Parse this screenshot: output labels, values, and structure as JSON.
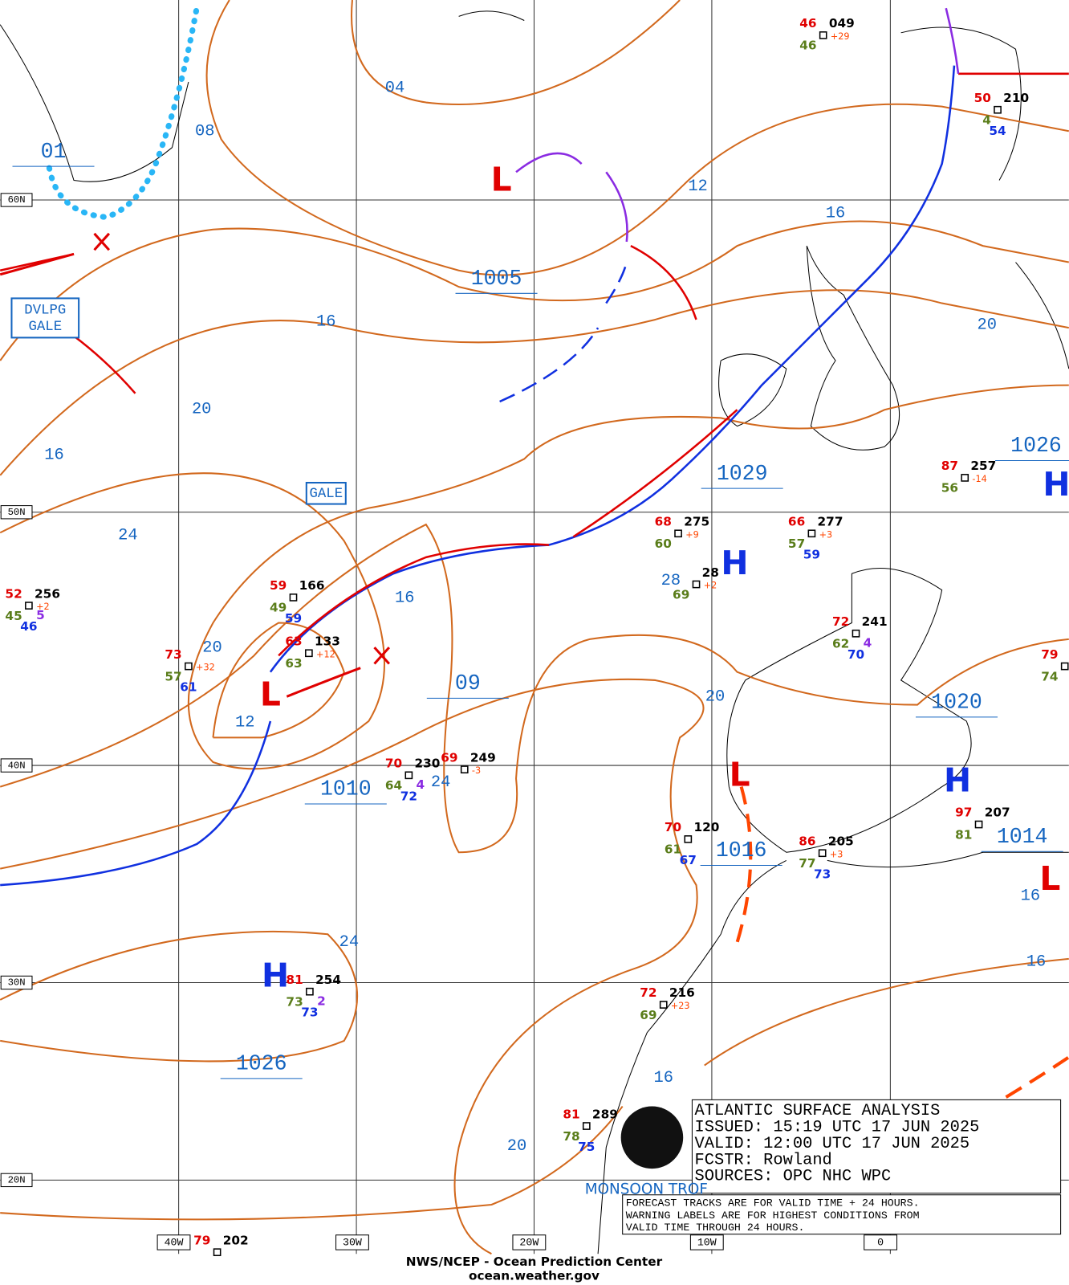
{
  "grid_labels": {
    "lat": [
      "60N",
      "50N",
      "40N",
      "30N",
      "20N"
    ],
    "lon": [
      "40W",
      "30W",
      "20W",
      "10W",
      "0"
    ]
  },
  "isobar_labels": [
    "04",
    "08",
    "01",
    "1005",
    "12",
    "16",
    "16",
    "20",
    "20",
    "16",
    "24",
    "1029",
    "1026",
    "16",
    "20",
    "12",
    "09",
    "1010",
    "24",
    "20",
    "1020",
    "1016",
    "1014",
    "16",
    "16",
    "24",
    "1026",
    "16",
    "20",
    "28"
  ],
  "centers": [
    "L",
    "L",
    "L",
    "L",
    "H",
    "H",
    "H",
    "H"
  ],
  "warnings": [
    "DVLPG GALE",
    "GALE"
  ],
  "stations": [
    {
      "temp": "46",
      "pressure": "049",
      "dew": "46",
      "tendency": "+29"
    },
    {
      "temp": "50",
      "pressure": "210",
      "dew": "4",
      "visibility": "54"
    },
    {
      "temp": "87",
      "pressure": "257",
      "dew": "56",
      "tendency": "-14"
    },
    {
      "temp": "68",
      "pressure": "275",
      "dew": "60",
      "tendency": "+9"
    },
    {
      "pressure": "28",
      "dew": "69",
      "tendency": "+2"
    },
    {
      "temp": "66",
      "pressure": "277",
      "dew": "57",
      "tendency": "+3",
      "visibility": "59"
    },
    {
      "temp": "72",
      "pressure": "241",
      "dew": "62",
      "visibility": "70",
      "extra": "4"
    },
    {
      "temp": "52",
      "pressure": "256",
      "dew": "45",
      "tendency": "+2",
      "visibility": "46",
      "extra": "5"
    },
    {
      "temp": "59",
      "pressure": "166",
      "dew": "49",
      "visibility": "59"
    },
    {
      "temp": "63",
      "pressure": "133",
      "dew": "63",
      "tendency": "+12"
    },
    {
      "temp": "73",
      "dew": "57",
      "visibility": "61",
      "tendency": "+32"
    },
    {
      "temp": "70",
      "pressure": "230",
      "dew": "64",
      "visibility": "72",
      "extra": "4"
    },
    {
      "temp": "69",
      "pressure": "249",
      "tendency": "-3"
    },
    {
      "temp": "70",
      "pressure": "120",
      "dew": "61",
      "visibility": "67"
    },
    {
      "temp": "86",
      "pressure": "205",
      "dew": "77",
      "visibility": "73",
      "tendency": "+3"
    },
    {
      "temp": "97",
      "pressure": "207",
      "dew": "81"
    },
    {
      "temp": "79",
      "dew": "74"
    },
    {
      "temp": "81",
      "pressure": "254",
      "dew": "73",
      "visibility": "73",
      "extra": "2"
    },
    {
      "temp": "72",
      "pressure": "216",
      "dew": "69",
      "tendency": "+23"
    },
    {
      "temp": "81",
      "pressure": "289",
      "dew": "78",
      "visibility": "75"
    },
    {
      "temp": "79",
      "pressure": "202"
    }
  ],
  "trough_label": "MONSOON TROF",
  "info_box": {
    "title": "ATLANTIC SURFACE ANALYSIS",
    "issued": "ISSUED: 15:19 UTC 17 JUN 2025",
    "valid": "VALID:  12:00 UTC 17 JUN 2025",
    "forecaster": "FCSTR:  Rowland",
    "sources": "SOURCES: OPC NHC WPC"
  },
  "notes": [
    "FORECAST TRACKS ARE FOR VALID TIME + 24 HOURS.",
    "WARNING LABELS ARE FOR HIGHEST CONDITIONS FROM",
    "VALID TIME THROUGH 24 HOURS."
  ],
  "footer": [
    "NWS/NCEP - Ocean Prediction Center",
    "ocean.weather.gov"
  ]
}
